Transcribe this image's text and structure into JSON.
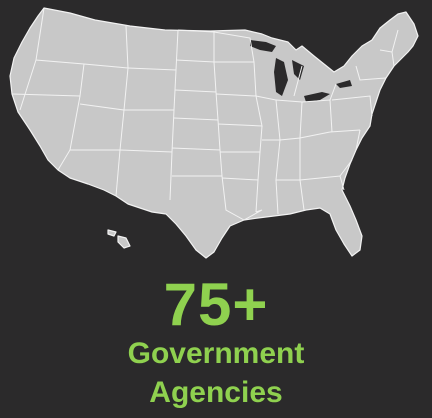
{
  "stat": {
    "value": "75+",
    "label_line1": "Government",
    "label_line2": "Agencies"
  },
  "colors": {
    "background": "#2b2a2b",
    "accent": "#8fd14f",
    "map_fill": "#c8c8c8",
    "map_borders": "#f2f2f2"
  },
  "map": {
    "icon": "usa-states-map-icon"
  }
}
